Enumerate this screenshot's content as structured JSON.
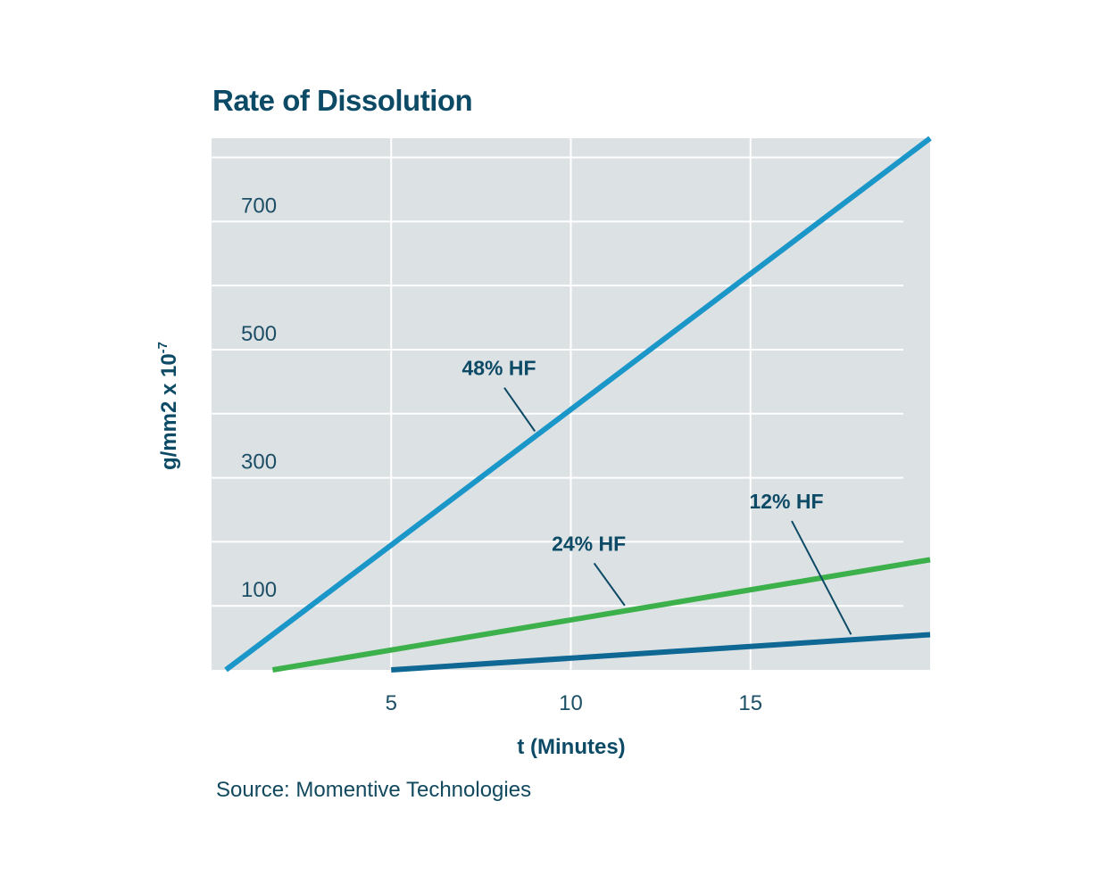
{
  "title": "Rate of Dissolution",
  "source": "Source: Momentive Technologies",
  "colors": {
    "plot_background": "#dce1e4",
    "grid": "#ffffff",
    "text": "#0d4a66"
  },
  "chart_data": {
    "type": "line",
    "title": "Rate of Dissolution",
    "xlabel": "t (Minutes)",
    "ylabel_main": "g/mm2 x 10",
    "ylabel_superscript": "-7",
    "xlim": [
      0,
      20
    ],
    "ylim": [
      0,
      830
    ],
    "x_ticks": [
      5,
      10,
      15
    ],
    "y_ticks": [
      100,
      300,
      500,
      700
    ],
    "grid": true,
    "series": [
      {
        "name": "48% HF",
        "color": "#1a96c8",
        "x": [
          0.4,
          20
        ],
        "y": [
          0,
          830
        ]
      },
      {
        "name": "24% HF",
        "color": "#3cb04a",
        "x": [
          1.7,
          20
        ],
        "y": [
          0,
          172
        ]
      },
      {
        "name": "12% HF",
        "color": "#0f6794",
        "x": [
          5,
          20
        ],
        "y": [
          0,
          55
        ]
      }
    ],
    "annotations": [
      {
        "text": "48% HF",
        "series": 0,
        "at_x": 9.0,
        "label_x": 8.0,
        "label_y": 460
      },
      {
        "text": "24% HF",
        "series": 1,
        "at_x": 11.5,
        "label_x": 10.5,
        "label_y": 186
      },
      {
        "text": "12% HF",
        "series": 2,
        "at_x": 17.8,
        "label_x": 16.0,
        "label_y": 252
      }
    ]
  }
}
